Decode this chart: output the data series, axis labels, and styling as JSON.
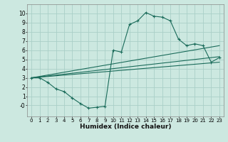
{
  "title": "",
  "xlabel": "Humidex (Indice chaleur)",
  "bg_color": "#cce8e0",
  "grid_color": "#aacfc8",
  "line_color": "#1a6b5a",
  "xlim": [
    -0.5,
    23.5
  ],
  "ylim": [
    -1.2,
    11.0
  ],
  "xticks": [
    0,
    1,
    2,
    3,
    4,
    5,
    6,
    7,
    8,
    9,
    10,
    11,
    12,
    13,
    14,
    15,
    16,
    17,
    18,
    19,
    20,
    21,
    22,
    23
  ],
  "yticks": [
    0,
    1,
    2,
    3,
    4,
    5,
    6,
    7,
    8,
    9,
    10
  ],
  "ytick_labels": [
    "-0",
    "1",
    "2",
    "3",
    "4",
    "5",
    "6",
    "7",
    "8",
    "9",
    "10"
  ],
  "line1_x": [
    0,
    1,
    2,
    3,
    4,
    5,
    6,
    7,
    8,
    9,
    10,
    11,
    12,
    13,
    14,
    15,
    16,
    17,
    18,
    19,
    20,
    21,
    22,
    23
  ],
  "line1_y": [
    3.0,
    3.0,
    2.5,
    1.8,
    1.5,
    0.8,
    0.2,
    -0.3,
    -0.2,
    -0.1,
    6.0,
    5.8,
    8.8,
    9.2,
    10.1,
    9.7,
    9.6,
    9.2,
    7.2,
    6.5,
    6.7,
    6.5,
    4.7,
    5.2
  ],
  "line2_x": [
    0,
    23
  ],
  "line2_y": [
    3.0,
    6.5
  ],
  "line3_x": [
    0,
    23
  ],
  "line3_y": [
    3.0,
    5.3
  ],
  "line4_x": [
    0,
    23
  ],
  "line4_y": [
    3.0,
    4.7
  ]
}
